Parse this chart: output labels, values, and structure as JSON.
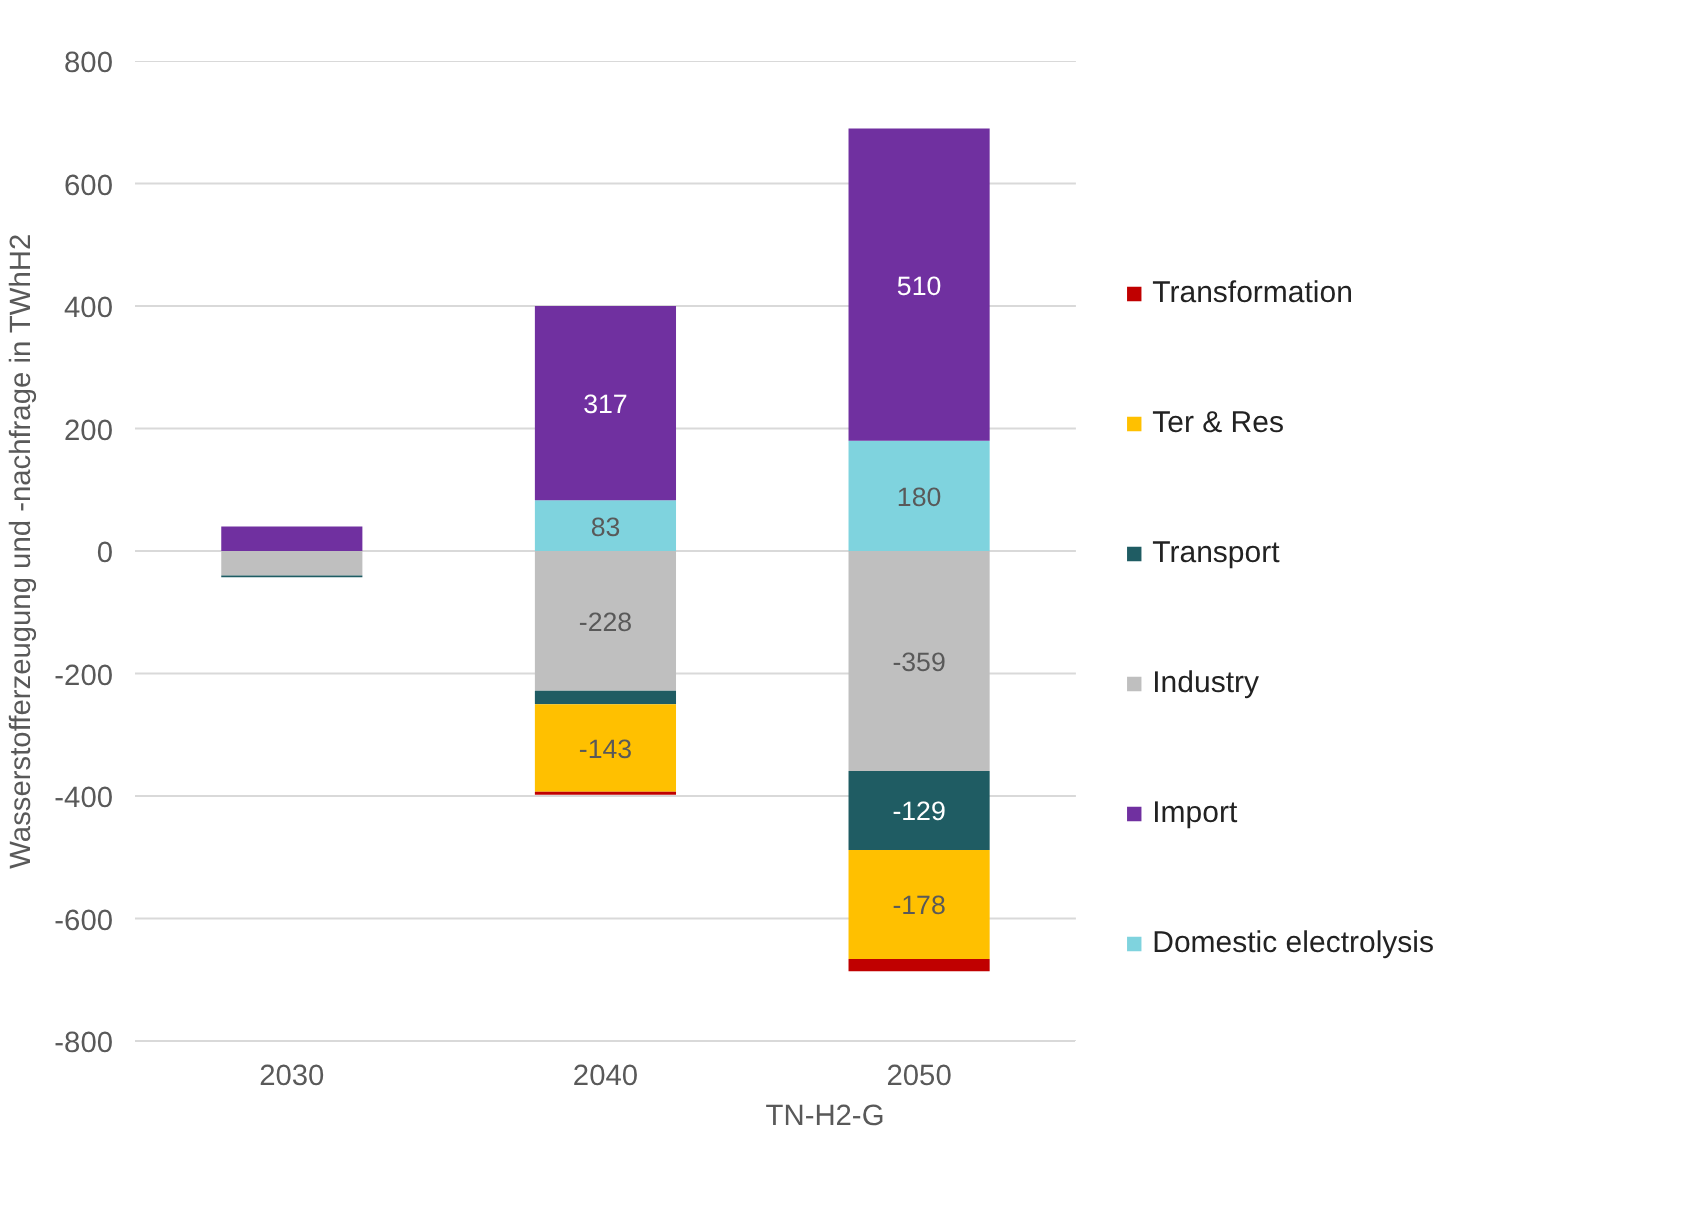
{
  "chart_data": {
    "type": "bar",
    "stacked": true,
    "xlabel": "TN-H2-G",
    "ylabel": "Wasserstofferzeugung und -nachfrage in TWhH2",
    "categories": [
      "2030",
      "2040",
      "2050"
    ],
    "ylim": [
      -800,
      800
    ],
    "yticks": [
      -800,
      -600,
      -400,
      -200,
      0,
      200,
      400,
      600,
      800
    ],
    "grid": "y",
    "legend": "right",
    "series": [
      {
        "name": "Domestic electrolysis",
        "color": "#7fd3de",
        "values": [
          null,
          83,
          180
        ],
        "value_labels": [
          null,
          "83",
          "180"
        ]
      },
      {
        "name": "Import",
        "color": "#7030a0",
        "values": [
          40,
          317,
          510
        ],
        "value_labels": [
          null,
          "317",
          "510"
        ]
      },
      {
        "name": "Industry",
        "color": "#bfbfbf",
        "values": [
          -40,
          -228,
          -359
        ],
        "value_labels": [
          null,
          "-228",
          "-359"
        ]
      },
      {
        "name": "Transport",
        "color": "#1f5c63",
        "values": [
          -3,
          -22,
          -129
        ],
        "value_labels": [
          null,
          null,
          "-129"
        ]
      },
      {
        "name": "Ter & Res",
        "color": "#ffc000",
        "values": [
          null,
          -143,
          -178
        ],
        "value_labels": [
          null,
          "-143",
          "-178"
        ]
      },
      {
        "name": "Transformation",
        "color": "#c00000",
        "values": [
          null,
          -5,
          -20
        ]
      }
    ]
  }
}
